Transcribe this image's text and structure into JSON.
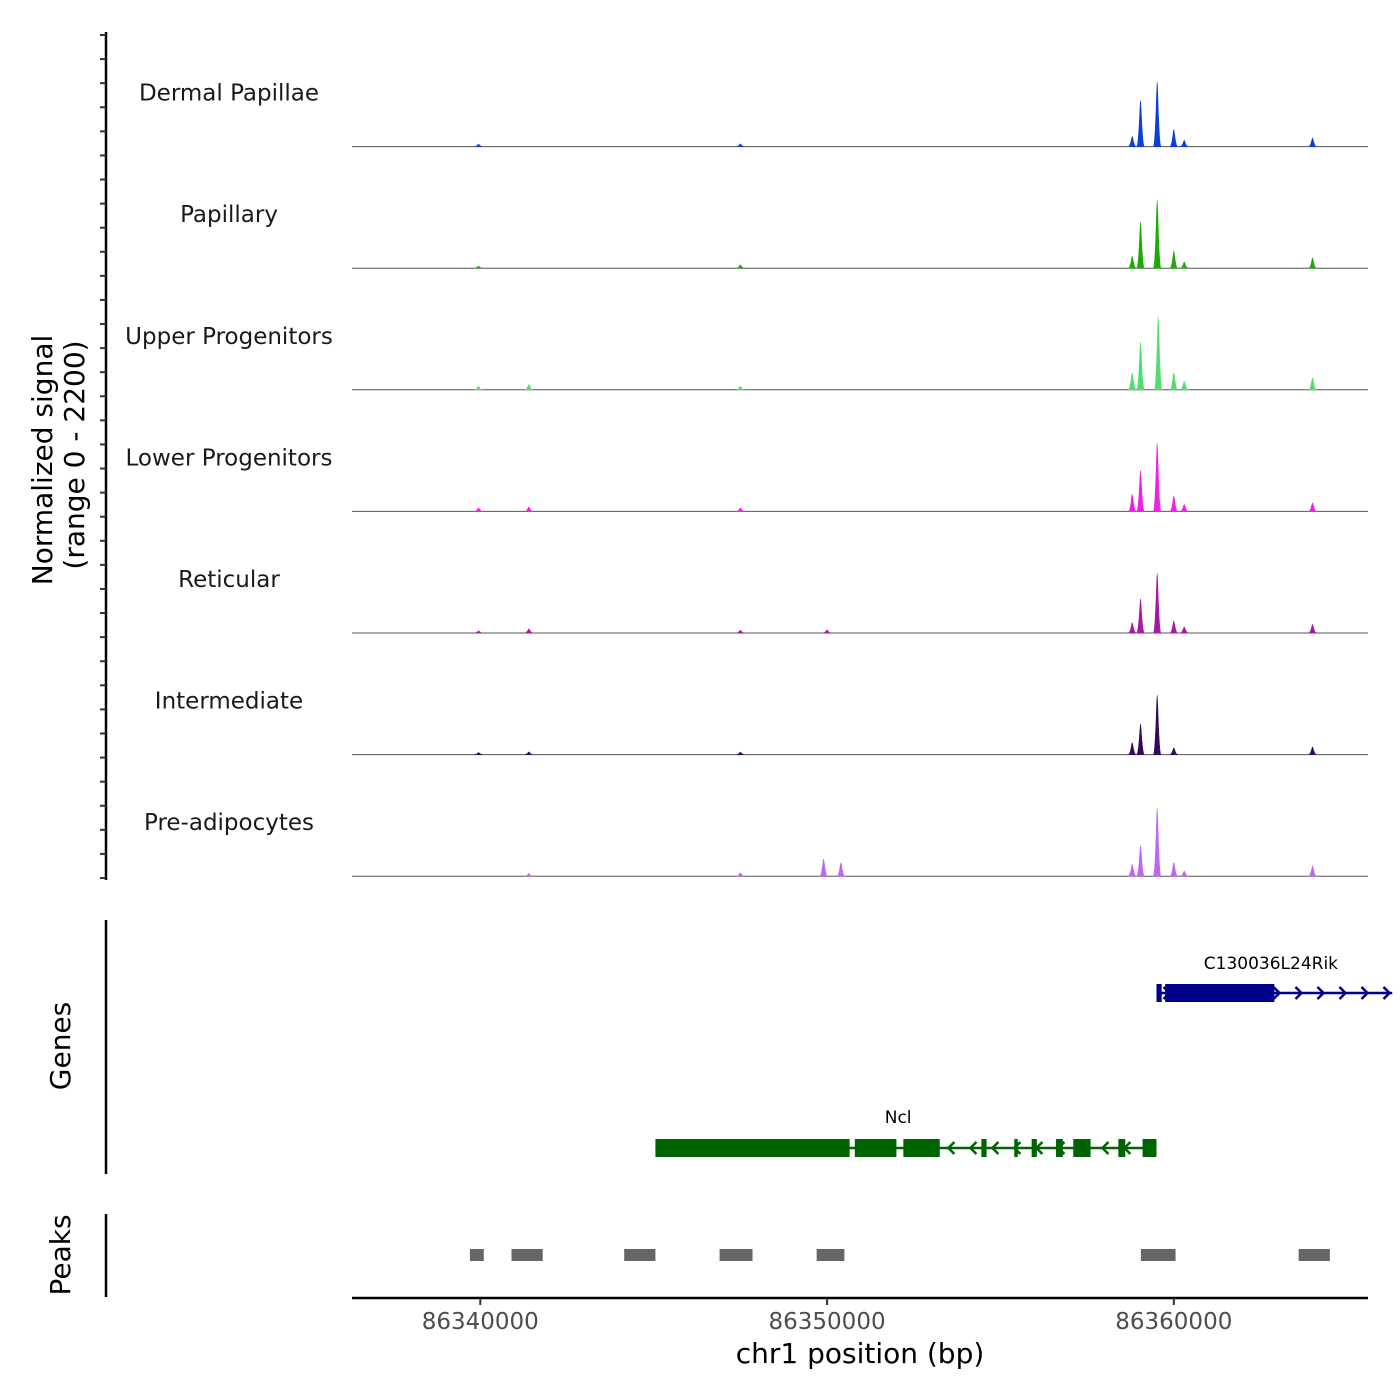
{
  "chart_data": {
    "type": "coverage",
    "y_title_line1": "Normalized signal",
    "y_title_line2": "(range 0 - 2200)",
    "y_range": [
      0,
      2200
    ],
    "x_title": "chr1 position (bp)",
    "x_range": [
      86336300,
      86365600
    ],
    "x_ticks": [
      86340000,
      86350000,
      86360000
    ],
    "x_tick_labels": [
      "86340000",
      "86350000",
      "86360000"
    ],
    "tracks": [
      {
        "name": "Dermal Papillae",
        "color": "#0B3FD8",
        "peaks": [
          [
            86359520,
            1900,
            100
          ],
          [
            86359040,
            1350,
            80
          ],
          [
            86358800,
            300,
            90
          ],
          [
            86360000,
            500,
            80
          ],
          [
            86360300,
            180,
            80
          ],
          [
            86364000,
            250,
            80
          ],
          [
            86339950,
            70,
            60
          ],
          [
            86347500,
            80,
            60
          ]
        ]
      },
      {
        "name": "Papillary",
        "color": "#1CAA06",
        "peaks": [
          [
            86359520,
            2000,
            100
          ],
          [
            86359040,
            1350,
            80
          ],
          [
            86358800,
            350,
            90
          ],
          [
            86360000,
            500,
            80
          ],
          [
            86360300,
            180,
            80
          ],
          [
            86364000,
            300,
            80
          ],
          [
            86339950,
            60,
            60
          ],
          [
            86347500,
            100,
            60
          ]
        ]
      },
      {
        "name": "Upper Progenitors",
        "color": "#54DC6C",
        "peaks": [
          [
            86359550,
            2150,
            110
          ],
          [
            86359040,
            1400,
            80
          ],
          [
            86358800,
            500,
            100
          ],
          [
            86360000,
            500,
            80
          ],
          [
            86360300,
            250,
            80
          ],
          [
            86364000,
            350,
            80
          ],
          [
            86339950,
            100,
            60
          ],
          [
            86341400,
            150,
            70
          ],
          [
            86347500,
            100,
            60
          ]
        ]
      },
      {
        "name": "Lower Progenitors",
        "color": "#F020E6",
        "peaks": [
          [
            86359520,
            2000,
            110
          ],
          [
            86359040,
            1200,
            80
          ],
          [
            86358800,
            500,
            100
          ],
          [
            86360000,
            450,
            80
          ],
          [
            86360300,
            200,
            80
          ],
          [
            86364000,
            250,
            80
          ],
          [
            86339950,
            100,
            60
          ],
          [
            86341400,
            130,
            70
          ],
          [
            86347500,
            100,
            60
          ]
        ]
      },
      {
        "name": "Reticular",
        "color": "#AA16A7",
        "peaks": [
          [
            86359520,
            1750,
            100
          ],
          [
            86359040,
            1000,
            80
          ],
          [
            86358800,
            300,
            100
          ],
          [
            86360000,
            350,
            80
          ],
          [
            86360300,
            180,
            80
          ],
          [
            86364000,
            250,
            80
          ],
          [
            86339950,
            60,
            60
          ],
          [
            86341400,
            120,
            70
          ],
          [
            86347500,
            80,
            60
          ],
          [
            86350000,
            90,
            60
          ]
        ]
      },
      {
        "name": "Intermediate",
        "color": "#330A5A",
        "peaks": [
          [
            86359520,
            1750,
            100
          ],
          [
            86359040,
            900,
            80
          ],
          [
            86358800,
            350,
            100
          ],
          [
            86360000,
            200,
            80
          ],
          [
            86364000,
            220,
            80
          ],
          [
            86339950,
            60,
            60
          ],
          [
            86341400,
            80,
            70
          ],
          [
            86347500,
            70,
            60
          ]
        ]
      },
      {
        "name": "Pre-adipocytes",
        "color": "#BF65F5",
        "peaks": [
          [
            86359520,
            2000,
            100
          ],
          [
            86359040,
            900,
            80
          ],
          [
            86358800,
            350,
            100
          ],
          [
            86360000,
            400,
            80
          ],
          [
            86360300,
            150,
            80
          ],
          [
            86364000,
            300,
            80
          ],
          [
            86349900,
            500,
            80
          ],
          [
            86350400,
            400,
            80
          ],
          [
            86347500,
            100,
            60
          ],
          [
            86341400,
            80,
            60
          ]
        ]
      }
    ],
    "genes_title": "Genes",
    "genes": [
      {
        "name": "C130036L24Rik",
        "color": "#00008B",
        "strand": "+",
        "start": 86359500,
        "end": 86366300,
        "label_pos": 86362800,
        "exons": [
          [
            86359500,
            86359650
          ],
          [
            86359750,
            86362900
          ]
        ]
      },
      {
        "name": "Ncl",
        "color": "#006400",
        "strand": "-",
        "start": 86345050,
        "end": 86359500,
        "label_pos": 86352050,
        "exons": [
          [
            86345050,
            86350650
          ],
          [
            86350800,
            86352000
          ],
          [
            86352200,
            86353250
          ],
          [
            86354450,
            86354600
          ],
          [
            86355400,
            86355500
          ],
          [
            86355900,
            86356050
          ],
          [
            86356600,
            86356800
          ],
          [
            86357100,
            86357600
          ],
          [
            86358400,
            86358600
          ],
          [
            86359100,
            86359500
          ]
        ]
      }
    ],
    "peaks_title": "Peaks",
    "peak_regions": [
      [
        86339700,
        86340100
      ],
      [
        86340900,
        86341800
      ],
      [
        86344150,
        86345050
      ],
      [
        86346900,
        86347850
      ],
      [
        86349700,
        86350500
      ],
      [
        86359050,
        86360050
      ],
      [
        86363600,
        86364500
      ]
    ]
  }
}
